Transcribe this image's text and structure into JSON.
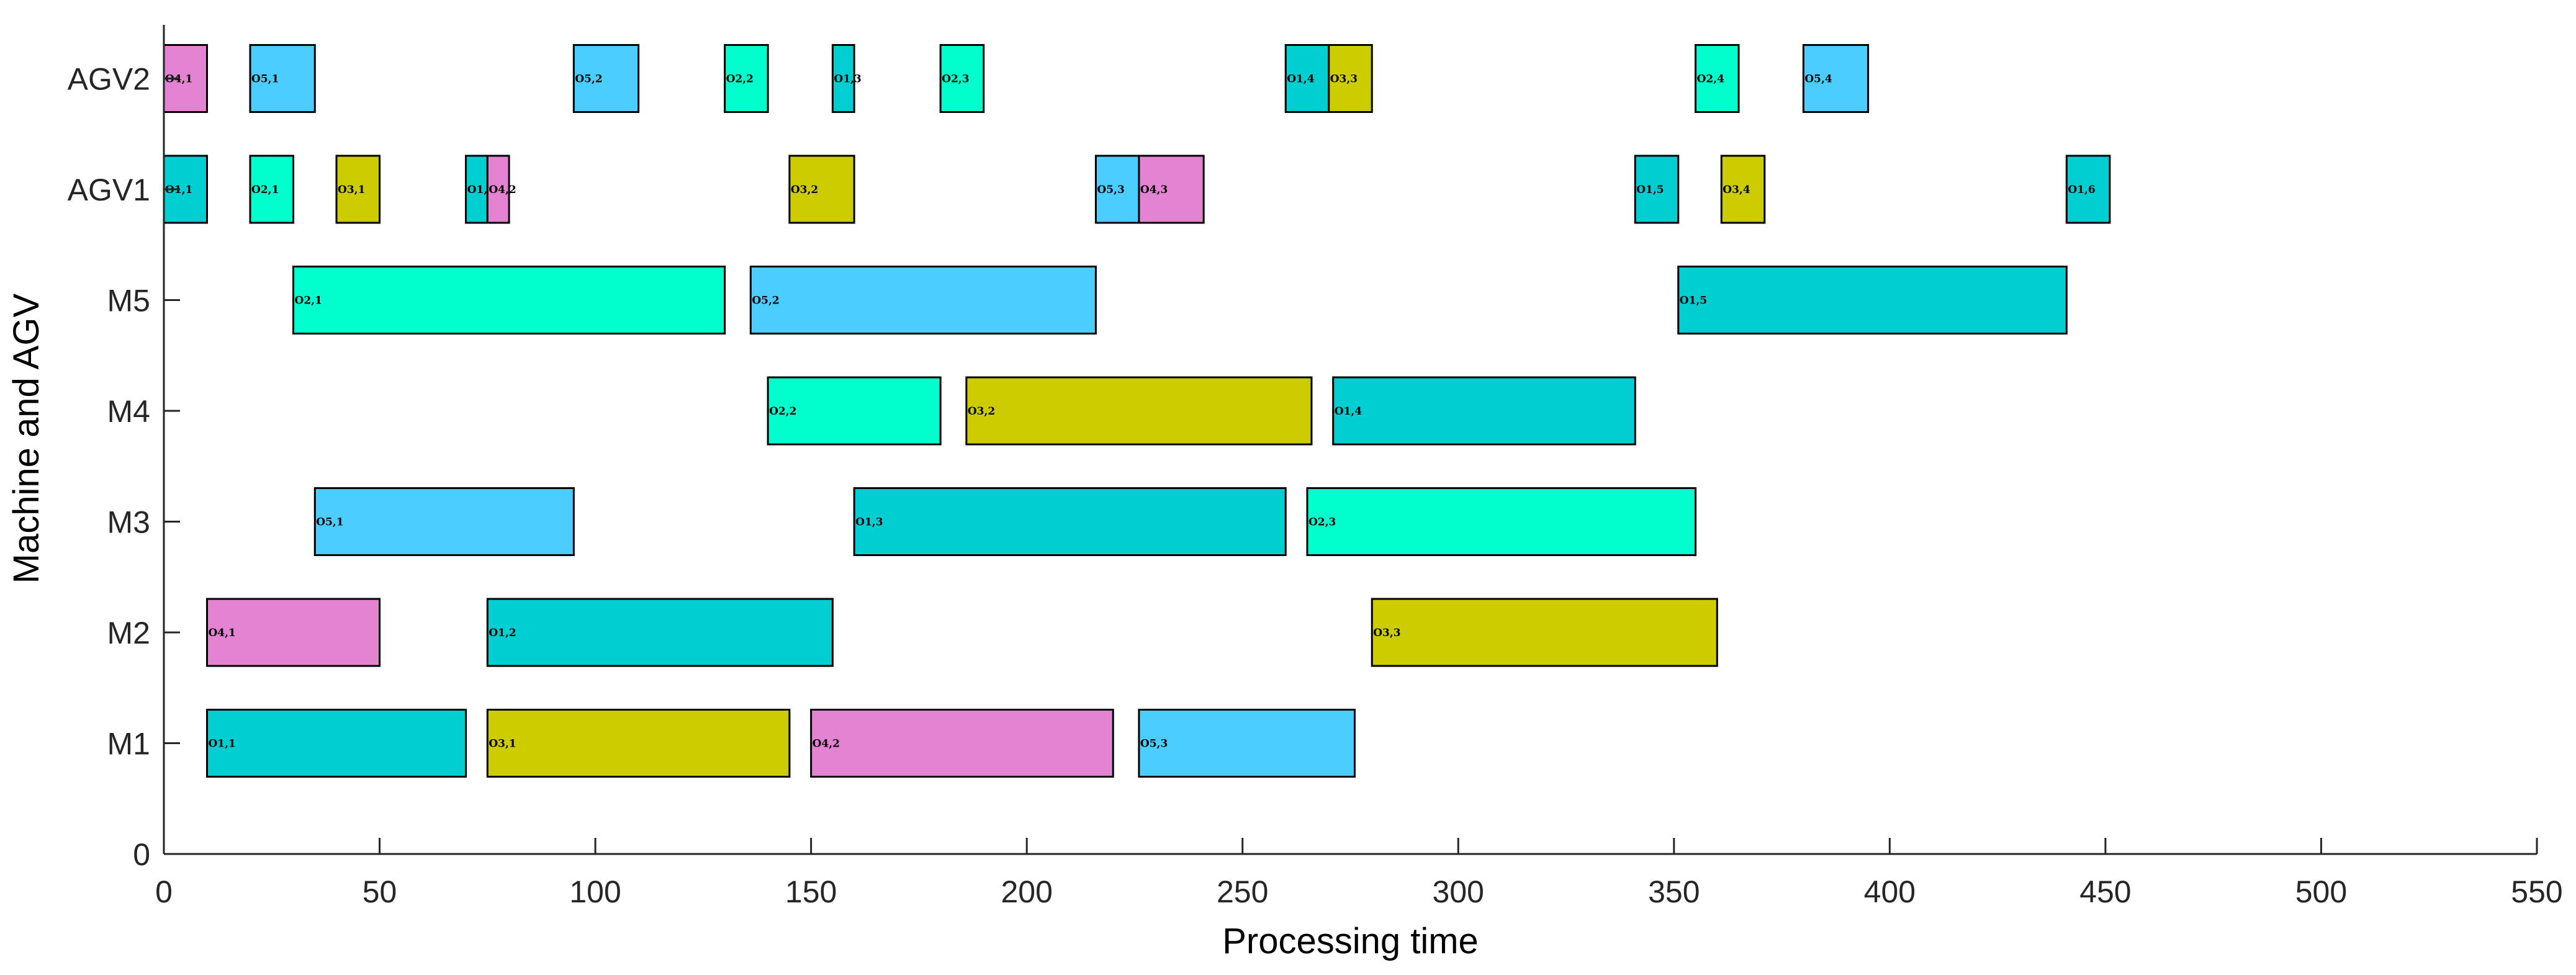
{
  "chart_data": {
    "type": "gantt",
    "title": "",
    "xlabel": "Processing time",
    "ylabel": "Machine and AGV",
    "xlim": [
      0,
      550
    ],
    "x_ticks": [
      0,
      50,
      100,
      150,
      200,
      250,
      300,
      350,
      400,
      450,
      500,
      550
    ],
    "rows": [
      "M1",
      "M2",
      "M3",
      "M4",
      "M5",
      "AGV1",
      "AGV2"
    ],
    "y_ticks": [
      {
        "value": 0,
        "label": "0"
      },
      {
        "value": 1,
        "label": "M1"
      },
      {
        "value": 2,
        "label": "M2"
      },
      {
        "value": 3,
        "label": "M3"
      },
      {
        "value": 4,
        "label": "M4"
      },
      {
        "value": 5,
        "label": "M5"
      },
      {
        "value": 6,
        "label": "AGV1"
      },
      {
        "value": 7,
        "label": "AGV2"
      }
    ],
    "job_colors": {
      "1": "#00CED1",
      "2": "#00FFCC",
      "3": "#CCCC00",
      "4": "#E383D1",
      "5": "#4BCDFF"
    },
    "tasks": [
      {
        "row": "M1",
        "job": 1,
        "label": "O1,1",
        "start": 10,
        "end": 70
      },
      {
        "row": "M1",
        "job": 3,
        "label": "O3,1",
        "start": 75,
        "end": 145
      },
      {
        "row": "M1",
        "job": 4,
        "label": "O4,2",
        "start": 150,
        "end": 220
      },
      {
        "row": "M1",
        "job": 5,
        "label": "O5,3",
        "start": 226,
        "end": 276
      },
      {
        "row": "M2",
        "job": 4,
        "label": "O4,1",
        "start": 10,
        "end": 50
      },
      {
        "row": "M2",
        "job": 1,
        "label": "O1,2",
        "start": 75,
        "end": 155
      },
      {
        "row": "M2",
        "job": 3,
        "label": "O3,3",
        "start": 280,
        "end": 360
      },
      {
        "row": "M3",
        "job": 5,
        "label": "O5,1",
        "start": 35,
        "end": 95
      },
      {
        "row": "M3",
        "job": 1,
        "label": "O1,3",
        "start": 160,
        "end": 260
      },
      {
        "row": "M3",
        "job": 2,
        "label": "O2,3",
        "start": 265,
        "end": 355
      },
      {
        "row": "M4",
        "job": 2,
        "label": "O2,2",
        "start": 140,
        "end": 180
      },
      {
        "row": "M4",
        "job": 3,
        "label": "O3,2",
        "start": 186,
        "end": 266
      },
      {
        "row": "M4",
        "job": 1,
        "label": "O1,4",
        "start": 271,
        "end": 341
      },
      {
        "row": "M5",
        "job": 2,
        "label": "O2,1",
        "start": 30,
        "end": 130
      },
      {
        "row": "M5",
        "job": 5,
        "label": "O5,2",
        "start": 136,
        "end": 216
      },
      {
        "row": "M5",
        "job": 1,
        "label": "O1,5",
        "start": 351,
        "end": 441
      },
      {
        "row": "AGV1",
        "job": 1,
        "label": "O1,1",
        "start": 0,
        "end": 10
      },
      {
        "row": "AGV1",
        "job": 2,
        "label": "O2,1",
        "start": 20,
        "end": 30
      },
      {
        "row": "AGV1",
        "job": 3,
        "label": "O3,1",
        "start": 40,
        "end": 50
      },
      {
        "row": "AGV1",
        "job": 1,
        "label": "O1,2",
        "start": 70,
        "end": 75
      },
      {
        "row": "AGV1",
        "job": 4,
        "label": "O4,2",
        "start": 75,
        "end": 80
      },
      {
        "row": "AGV1",
        "job": 3,
        "label": "O3,2",
        "start": 145,
        "end": 160
      },
      {
        "row": "AGV1",
        "job": 5,
        "label": "O5,3",
        "start": 216,
        "end": 226
      },
      {
        "row": "AGV1",
        "job": 4,
        "label": "O4,3",
        "start": 226,
        "end": 241
      },
      {
        "row": "AGV1",
        "job": 1,
        "label": "O1,5",
        "start": 341,
        "end": 351
      },
      {
        "row": "AGV1",
        "job": 3,
        "label": "O3,4",
        "start": 361,
        "end": 371
      },
      {
        "row": "AGV1",
        "job": 1,
        "label": "O1,6",
        "start": 441,
        "end": 451
      },
      {
        "row": "AGV2",
        "job": 4,
        "label": "O4,1",
        "start": 0,
        "end": 10
      },
      {
        "row": "AGV2",
        "job": 5,
        "label": "O5,1",
        "start": 20,
        "end": 35
      },
      {
        "row": "AGV2",
        "job": 5,
        "label": "O5,2",
        "start": 95,
        "end": 110
      },
      {
        "row": "AGV2",
        "job": 2,
        "label": "O2,2",
        "start": 130,
        "end": 140
      },
      {
        "row": "AGV2",
        "job": 1,
        "label": "O1,3",
        "start": 155,
        "end": 160
      },
      {
        "row": "AGV2",
        "job": 2,
        "label": "O2,3",
        "start": 180,
        "end": 190
      },
      {
        "row": "AGV2",
        "job": 1,
        "label": "O1,4",
        "start": 260,
        "end": 270
      },
      {
        "row": "AGV2",
        "job": 3,
        "label": "O3,3",
        "start": 270,
        "end": 280
      },
      {
        "row": "AGV2",
        "job": 2,
        "label": "O2,4",
        "start": 355,
        "end": 365
      },
      {
        "row": "AGV2",
        "job": 5,
        "label": "O5,4",
        "start": 380,
        "end": 395
      }
    ]
  }
}
